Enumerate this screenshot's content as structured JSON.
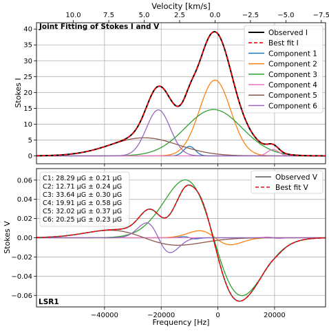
{
  "figure": {
    "top_axis_label": "Velocity [km/s]",
    "panel_title": "Joint Fitting of Stokes I and V",
    "bottom_label": "LSR1",
    "xlabel": "Frequency [Hz]"
  },
  "chart_data": [
    {
      "type": "line",
      "title": "Joint Fitting of Stokes I and V",
      "ylabel": "Stokes I",
      "xlabel": "",
      "xlim": [
        -64000,
        38000
      ],
      "ylim": [
        -2.5,
        42
      ],
      "x_ticks": [
        -40000,
        -20000,
        0,
        20000
      ],
      "y_ticks": [
        0,
        5,
        10,
        15,
        20,
        25,
        30,
        35,
        40
      ],
      "secondary_x": {
        "label": "Velocity [km/s]",
        "ticks": [
          10.0,
          7.5,
          5.0,
          2.5,
          0.0,
          -2.5,
          -5.0,
          -7.5
        ],
        "tick_labels": [
          "10.0",
          "7.5",
          "5.0",
          "2.5",
          "0.0",
          "−2.5",
          "−5.0",
          "−7.5"
        ],
        "hz_per_kms": 5000,
        "zero_at_hz": -1000
      },
      "grid": true,
      "legend_position": "top-right",
      "components": [
        {
          "name": "Component 1",
          "color": "#1f77b4",
          "amplitude": 3.0,
          "center": -10000,
          "width": 2000
        },
        {
          "name": "Component 2",
          "color": "#ff7f0e",
          "amplitude": 23.9,
          "center": -1000,
          "width": 5500
        },
        {
          "name": "Component 3",
          "color": "#2ca02c",
          "amplitude": 14.6,
          "center": -1500,
          "width": 10000
        },
        {
          "name": "Component 4",
          "color": "#e377c2",
          "amplitude": 2.0,
          "center": 19500,
          "width": 2000
        },
        {
          "name": "Component 5",
          "color": "#8c564b",
          "amplitude": 5.7,
          "center": -26000,
          "width": 12000
        },
        {
          "name": "Component 6",
          "color": "#9467bd",
          "amplitude": 14.5,
          "center": -21000,
          "width": 4200
        }
      ],
      "series": [
        {
          "name": "Observed I",
          "color": "#000000",
          "style": "solid"
        },
        {
          "name": "Best fit I",
          "color": "#ff0000",
          "style": "dashed"
        }
      ]
    },
    {
      "type": "line",
      "title": "",
      "ylabel": "Stokes V",
      "xlabel": "Frequency [Hz]",
      "xlim": [
        -64000,
        38000
      ],
      "ylim": [
        -0.072,
        0.072
      ],
      "x_ticks": [
        -40000,
        -20000,
        0,
        20000
      ],
      "x_tick_labels": [
        "−40000",
        "−20000",
        "0",
        "20000"
      ],
      "y_ticks": [
        -0.06,
        -0.04,
        -0.02,
        0.0,
        0.02,
        0.04,
        0.06
      ],
      "y_tick_labels": [
        "−0.06",
        "−0.04",
        "−0.02",
        "0.00",
        "0.02",
        "0.04",
        "0.06"
      ],
      "grid": true,
      "legend_position": "top-right",
      "field_labels": [
        "C1: 28.29 μG ± 0.21 μG",
        "C2: 12.71 μG ± 0.24 μG",
        "C3: 33.64 μG ± 0.30 μG",
        "C4: 19.91 μG ± 0.58 μG",
        "C5: 32.02 μG ± 0.37 μG",
        "C6: 20.25 μG ± 0.23 μG"
      ],
      "series": [
        {
          "name": "Observed V",
          "color": "#555555",
          "style": "solid"
        },
        {
          "name": "Best fit V",
          "color": "#ff0000",
          "style": "dashed"
        }
      ]
    }
  ]
}
